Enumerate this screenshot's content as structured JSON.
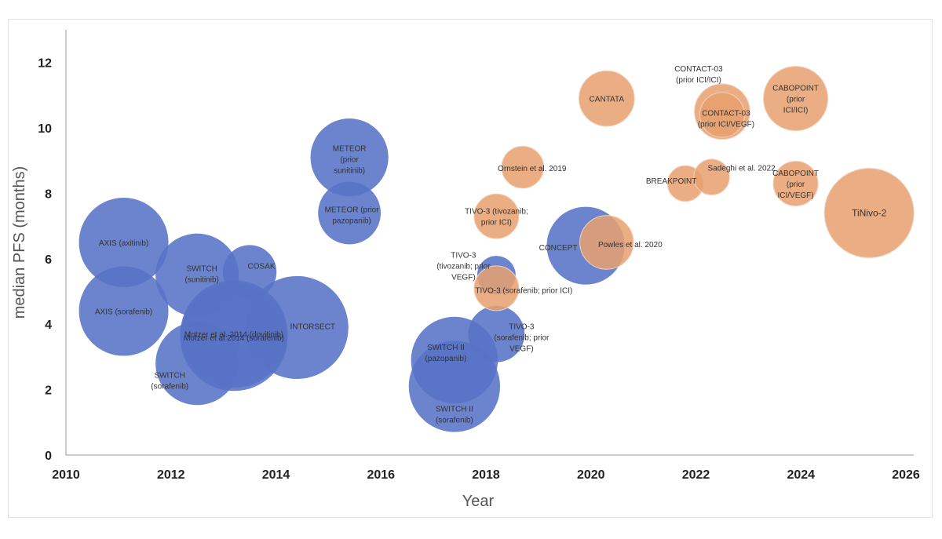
{
  "chart_data": {
    "type": "scatter",
    "subtype": "bubble",
    "title": "",
    "xlabel": "Year",
    "ylabel": "median PFS (months)",
    "xlim": [
      2010,
      2026
    ],
    "ylim": [
      0,
      13
    ],
    "xticks": [
      2010,
      2012,
      2014,
      2016,
      2018,
      2020,
      2022,
      2024,
      2026
    ],
    "yticks": [
      0,
      2,
      4,
      6,
      8,
      10,
      12
    ],
    "grid": false,
    "colors": {
      "blue": "#5873C6",
      "orange": "#E8A06E"
    },
    "series": [
      {
        "name": "blue",
        "color": "#5873C6",
        "points": [
          {
            "label": "AXIS (axitinib)",
            "x": 2011.1,
            "y": 6.5,
            "size": 1.0
          },
          {
            "label": "AXIS (sorafenib)",
            "x": 2011.1,
            "y": 4.4,
            "size": 1.0
          },
          {
            "label": "SWITCH\n(sunitinib)",
            "x": 2012.5,
            "y": 5.5,
            "size": 0.93
          },
          {
            "label": "COSAK",
            "x": 2013.5,
            "y": 5.6,
            "size": 0.6
          },
          {
            "label": "SWITCH\n(sorafenib)",
            "x": 2012.5,
            "y": 2.8,
            "size": 0.93
          },
          {
            "label": "Motzer et al. 2014 (dovitinib)",
            "x": 2013.2,
            "y": 3.7,
            "size": 1.2
          },
          {
            "label": "Motzer et al 2014 (sorafenib)",
            "x": 2013.2,
            "y": 3.6,
            "size": 1.2
          },
          {
            "label": "INTORSECT",
            "x": 2014.4,
            "y": 3.9,
            "size": 1.15
          },
          {
            "label": "METEOR\n(prior\nsunitinib)",
            "x": 2015.4,
            "y": 9.1,
            "size": 0.87
          },
          {
            "label": "METEOR (prior\npazopanib)",
            "x": 2015.4,
            "y": 7.4,
            "size": 0.7
          },
          {
            "label": "SWITCH II\n(pazopanib)",
            "x": 2017.4,
            "y": 2.9,
            "size": 0.97
          },
          {
            "label": "SWITCH II\n(sorafenib)",
            "x": 2017.4,
            "y": 2.1,
            "size": 1.02
          },
          {
            "label": "TIVO-3\n(tivozanib; prior\nVEGF)",
            "x": 2018.2,
            "y": 5.5,
            "size": 0.43
          },
          {
            "label": "TIVO-3\n(sorafenib; prior\nVEGF)",
            "x": 2018.2,
            "y": 3.7,
            "size": 0.63
          },
          {
            "label": "CONCEPT",
            "x": 2019.9,
            "y": 6.4,
            "size": 0.87
          }
        ]
      },
      {
        "name": "orange",
        "color": "#E8A06E",
        "points": [
          {
            "label": "TIVO-3 (tivozanib;\nprior ICI)",
            "x": 2018.2,
            "y": 7.3,
            "size": 0.5
          },
          {
            "label": "TIVO-3 (sorafenib; prior ICI)",
            "x": 2018.2,
            "y": 5.1,
            "size": 0.5
          },
          {
            "label": "Ornstein et al. 2019",
            "x": 2018.7,
            "y": 8.8,
            "size": 0.47
          },
          {
            "label": "CANTATA",
            "x": 2020.3,
            "y": 10.9,
            "size": 0.62
          },
          {
            "label": "Powles et al. 2020",
            "x": 2020.3,
            "y": 6.5,
            "size": 0.6
          },
          {
            "label": "BREAKPOINT",
            "x": 2021.8,
            "y": 8.3,
            "size": 0.4
          },
          {
            "label": "Sadeghi et al. 2022",
            "x": 2022.3,
            "y": 8.5,
            "size": 0.4
          },
          {
            "label": "CONTACT-03\n(prior ICI/ICI)",
            "x": 2022.5,
            "y": 10.5,
            "size": 0.62
          },
          {
            "label": "CONTACT-03\n(prior ICI/VEGF)",
            "x": 2022.5,
            "y": 10.4,
            "size": 0.5
          },
          {
            "label": "CABOPOINT\n(prior\nICI/ICI)",
            "x": 2023.9,
            "y": 10.9,
            "size": 0.72
          },
          {
            "label": "CABOPOINT\n(prior\nICI/VEGF)",
            "x": 2023.9,
            "y": 8.3,
            "size": 0.5
          },
          {
            "label": "TiNivo-2",
            "x": 2025.3,
            "y": 7.4,
            "size": 1.0
          }
        ]
      }
    ]
  }
}
